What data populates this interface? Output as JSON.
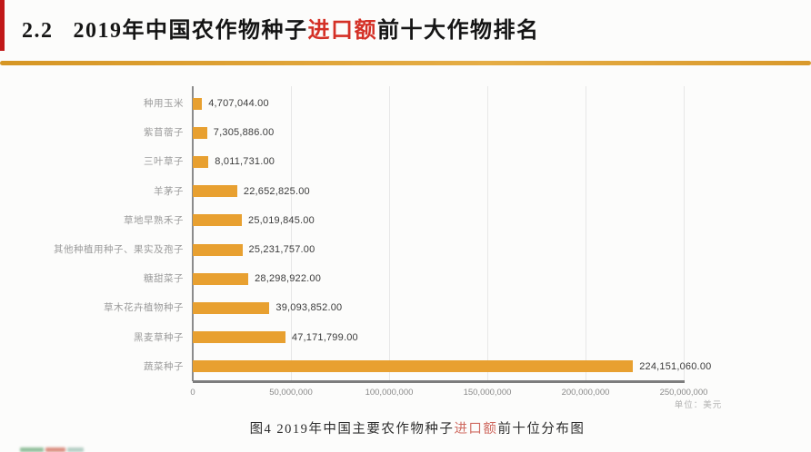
{
  "header": {
    "section_number": "2.2",
    "title_prefix": "2019年中国农作物种子",
    "title_highlight": "进口额",
    "title_suffix": "前十大作物排名"
  },
  "chart_data": {
    "type": "bar",
    "orientation": "horizontal",
    "categories": [
      "种用玉米",
      "紫苜蓿子",
      "三叶草子",
      "羊茅子",
      "草地早熟禾子",
      "其他种植用种子、果实及孢子",
      "糖甜菜子",
      "草木花卉植物种子",
      "黑麦草种子",
      "蔬菜种子"
    ],
    "values": [
      4707044.0,
      7305886.0,
      8011731.0,
      22652825.0,
      25019845.0,
      25231757.0,
      28298922.0,
      39093852.0,
      47171799.0,
      224151060.0
    ],
    "value_labels": [
      "4,707,044.00",
      "7,305,886.00",
      "8,011,731.00",
      "22,652,825.00",
      "25,019,845.00",
      "25,231,757.00",
      "28,298,922.00",
      "39,093,852.00",
      "47,171,799.00",
      "224,151,060.00"
    ],
    "xlim": [
      0,
      250000000
    ],
    "x_ticks": [
      "0",
      "50,000,000",
      "100,000,000",
      "150,000,000",
      "200,000,000",
      "250,000,000"
    ],
    "grid": true,
    "legend": "none",
    "unit_label": "单位：美元",
    "bar_color": "#e8a030",
    "axis_color": "#7d7d7d",
    "grid_color": "#e7e7e7"
  },
  "caption": {
    "figure_prefix": "图4  2019年中国主要农作物种子",
    "figure_highlight": "进口额",
    "figure_suffix": "前十位分布图"
  },
  "accent_colors": {
    "title_highlight_red": "#d43026",
    "caption_highlight_red": "#cf6a60",
    "gold_rule": "#d69624",
    "left_strip_red": "#c11818"
  }
}
